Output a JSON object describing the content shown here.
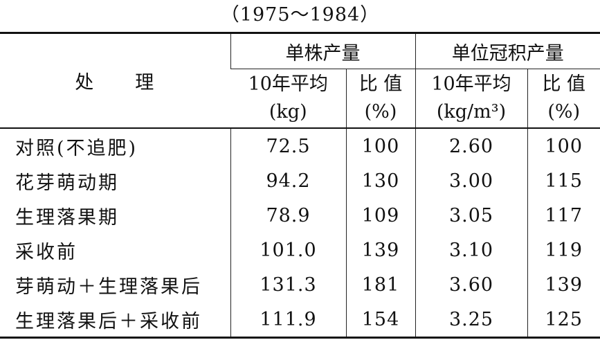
{
  "header": {
    "title": "（1975～1984）"
  },
  "table": {
    "row_header": "处　　理",
    "groups": [
      "单株产量",
      "单位冠积产量"
    ],
    "subheaders": [
      [
        "10年平均",
        "(kg)"
      ],
      [
        "比 值",
        "(%)"
      ],
      [
        "10年平均",
        "(kg/m³)"
      ],
      [
        "比 值",
        "(%)"
      ]
    ],
    "rows": [
      [
        "对照(不追肥)",
        "72.5",
        "100",
        "2.60",
        "100"
      ],
      [
        "花芽萌动期",
        "94.2",
        "130",
        "3.00",
        "115"
      ],
      [
        "生理落果期",
        "78.9",
        "109",
        "3.05",
        "117"
      ],
      [
        "采收前",
        "101.0",
        "139",
        "3.10",
        "119"
      ],
      [
        "芽萌动＋生理落果后",
        "131.3",
        "181",
        "3.60",
        "139"
      ],
      [
        "生理落果后＋采收前",
        "111.9",
        "154",
        "3.25",
        "125"
      ]
    ]
  }
}
